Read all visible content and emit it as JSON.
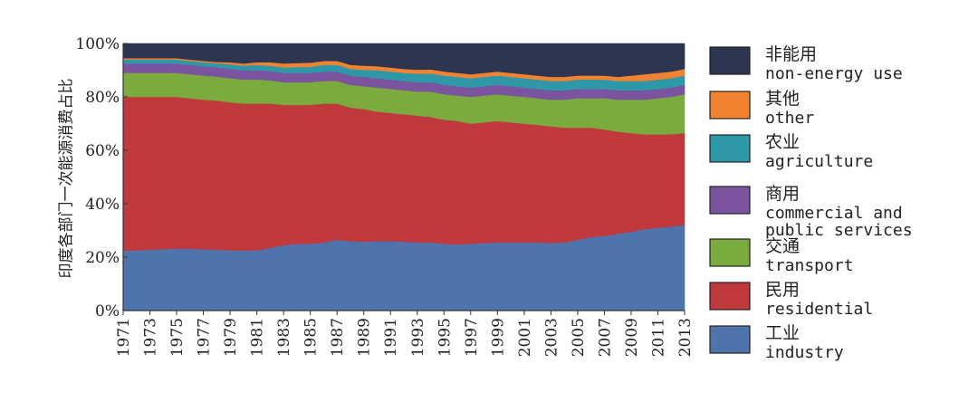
{
  "chart_data": {
    "type": "area",
    "stacked": true,
    "ylabel": "印度各部门一次能源消费占比",
    "xlabel": "",
    "ylim": [
      0,
      100
    ],
    "yticks": [
      "0%",
      "20%",
      "40%",
      "60%",
      "80%",
      "100%"
    ],
    "x": [
      1971,
      1972,
      1973,
      1974,
      1975,
      1976,
      1977,
      1978,
      1979,
      1980,
      1981,
      1982,
      1983,
      1984,
      1985,
      1986,
      1987,
      1988,
      1989,
      1990,
      1991,
      1992,
      1993,
      1994,
      1995,
      1996,
      1997,
      1998,
      1999,
      2000,
      2001,
      2002,
      2003,
      2004,
      2005,
      2006,
      2007,
      2008,
      2009,
      2010,
      2011,
      2012,
      2013
    ],
    "xtick_labels": [
      "1971",
      "1973",
      "1975",
      "1977",
      "1979",
      "1981",
      "1983",
      "1985",
      "1987",
      "1989",
      "1991",
      "1993",
      "1995",
      "1997",
      "1999",
      "2001",
      "2003",
      "2005",
      "2007",
      "2009",
      "2011",
      "2013"
    ],
    "grid": false,
    "legend_position": "right",
    "series": [
      {
        "name": "工业 industry",
        "name_zh": "工业",
        "name_en": "industry",
        "color": "#4f74ad",
        "values": [
          22.5,
          22.5,
          22.8,
          23.0,
          23.2,
          23.2,
          23.0,
          22.8,
          22.5,
          22.5,
          22.5,
          23.5,
          24.5,
          25.0,
          25.0,
          25.5,
          26.5,
          26.0,
          25.8,
          26.0,
          26.0,
          25.8,
          25.5,
          25.5,
          25.0,
          24.8,
          25.0,
          25.3,
          25.5,
          25.5,
          25.5,
          25.5,
          25.3,
          25.5,
          26.5,
          27.5,
          28.0,
          28.8,
          29.5,
          30.5,
          31.0,
          31.5,
          32.0
        ]
      },
      {
        "name": "民用 residential",
        "name_zh": "民用",
        "name_en": "residential",
        "color": "#c0393d",
        "values": [
          57.5,
          57.5,
          57.2,
          57.0,
          56.8,
          56.3,
          56.0,
          55.8,
          55.5,
          55.0,
          55.0,
          54.0,
          52.5,
          52.0,
          52.0,
          52.0,
          51.0,
          50.0,
          49.7,
          48.5,
          48.0,
          47.7,
          47.5,
          47.0,
          46.5,
          46.2,
          45.0,
          45.2,
          45.5,
          45.0,
          44.5,
          44.0,
          43.7,
          43.0,
          42.0,
          41.0,
          39.8,
          38.2,
          37.0,
          35.5,
          35.0,
          34.5,
          34.5
        ]
      },
      {
        "name": "交通 transport",
        "name_zh": "交通",
        "name_en": "transport",
        "color": "#7bab3e",
        "values": [
          9.0,
          9.0,
          9.0,
          9.0,
          9.0,
          9.0,
          9.0,
          9.0,
          9.0,
          9.0,
          9.0,
          8.7,
          8.5,
          8.5,
          8.5,
          8.5,
          8.5,
          8.5,
          8.5,
          9.0,
          9.0,
          9.0,
          9.0,
          9.5,
          9.5,
          9.5,
          10.0,
          10.0,
          10.0,
          10.0,
          10.0,
          10.0,
          10.0,
          10.5,
          11.0,
          11.0,
          11.7,
          12.0,
          12.5,
          13.0,
          13.5,
          14.0,
          14.5
        ]
      },
      {
        "name": "商用 commercial and public services",
        "name_zh": "商用",
        "name_en": [
          "commercial and",
          "public services"
        ],
        "color": "#7b54a0",
        "values": [
          3.5,
          3.5,
          3.5,
          3.5,
          3.5,
          3.5,
          3.5,
          3.5,
          3.5,
          3.5,
          3.5,
          3.5,
          3.5,
          3.5,
          3.5,
          3.5,
          3.5,
          3.5,
          3.5,
          3.5,
          3.5,
          3.5,
          3.5,
          3.5,
          3.5,
          3.5,
          3.5,
          3.5,
          3.5,
          3.5,
          3.5,
          3.5,
          3.5,
          3.5,
          3.5,
          3.5,
          3.5,
          3.5,
          3.5,
          3.5,
          3.5,
          3.5,
          3.5
        ]
      },
      {
        "name": "农业 agriculture",
        "name_zh": "农业",
        "name_en": "agriculture",
        "color": "#2f98a8",
        "values": [
          1.5,
          1.5,
          1.5,
          1.5,
          1.5,
          1.5,
          1.5,
          1.5,
          1.7,
          1.7,
          2.0,
          2.0,
          2.0,
          2.2,
          2.3,
          2.5,
          2.5,
          2.5,
          2.7,
          3.0,
          3.0,
          3.0,
          3.2,
          3.3,
          3.5,
          3.5,
          3.5,
          3.5,
          3.5,
          3.5,
          3.5,
          3.5,
          3.5,
          3.5,
          3.5,
          3.5,
          3.5,
          3.5,
          3.5,
          3.5,
          3.5,
          3.5,
          3.5
        ]
      },
      {
        "name": "其他 other",
        "name_zh": "其他",
        "name_en": "other",
        "color": "#f08230",
        "values": [
          0.5,
          0.5,
          0.5,
          0.5,
          0.5,
          0.5,
          0.5,
          0.5,
          0.8,
          0.8,
          1.0,
          1.3,
          1.5,
          1.5,
          1.5,
          1.5,
          1.5,
          1.5,
          1.5,
          1.5,
          1.5,
          1.5,
          1.5,
          1.5,
          1.5,
          1.5,
          1.5,
          1.5,
          1.5,
          1.5,
          1.5,
          1.5,
          1.5,
          1.5,
          1.5,
          1.5,
          1.5,
          1.5,
          2.0,
          2.5,
          2.5,
          2.5,
          2.5
        ]
      },
      {
        "name": "非能用 non-energy use",
        "name_zh": "非能用",
        "name_en": "non-energy use",
        "color": "#2e3550",
        "values": [
          5.5,
          5.5,
          5.5,
          5.5,
          5.5,
          6.0,
          6.5,
          6.9,
          7.0,
          7.5,
          7.0,
          7.0,
          7.5,
          7.3,
          7.2,
          6.5,
          6.5,
          8.0,
          8.3,
          8.5,
          9.0,
          9.5,
          9.8,
          9.7,
          10.5,
          11.0,
          12.0,
          11.0,
          10.5,
          11.0,
          11.5,
          12.0,
          12.5,
          12.5,
          12.0,
          12.0,
          12.0,
          12.5,
          12.0,
          11.5,
          11.0,
          10.5,
          9.5
        ]
      }
    ]
  }
}
